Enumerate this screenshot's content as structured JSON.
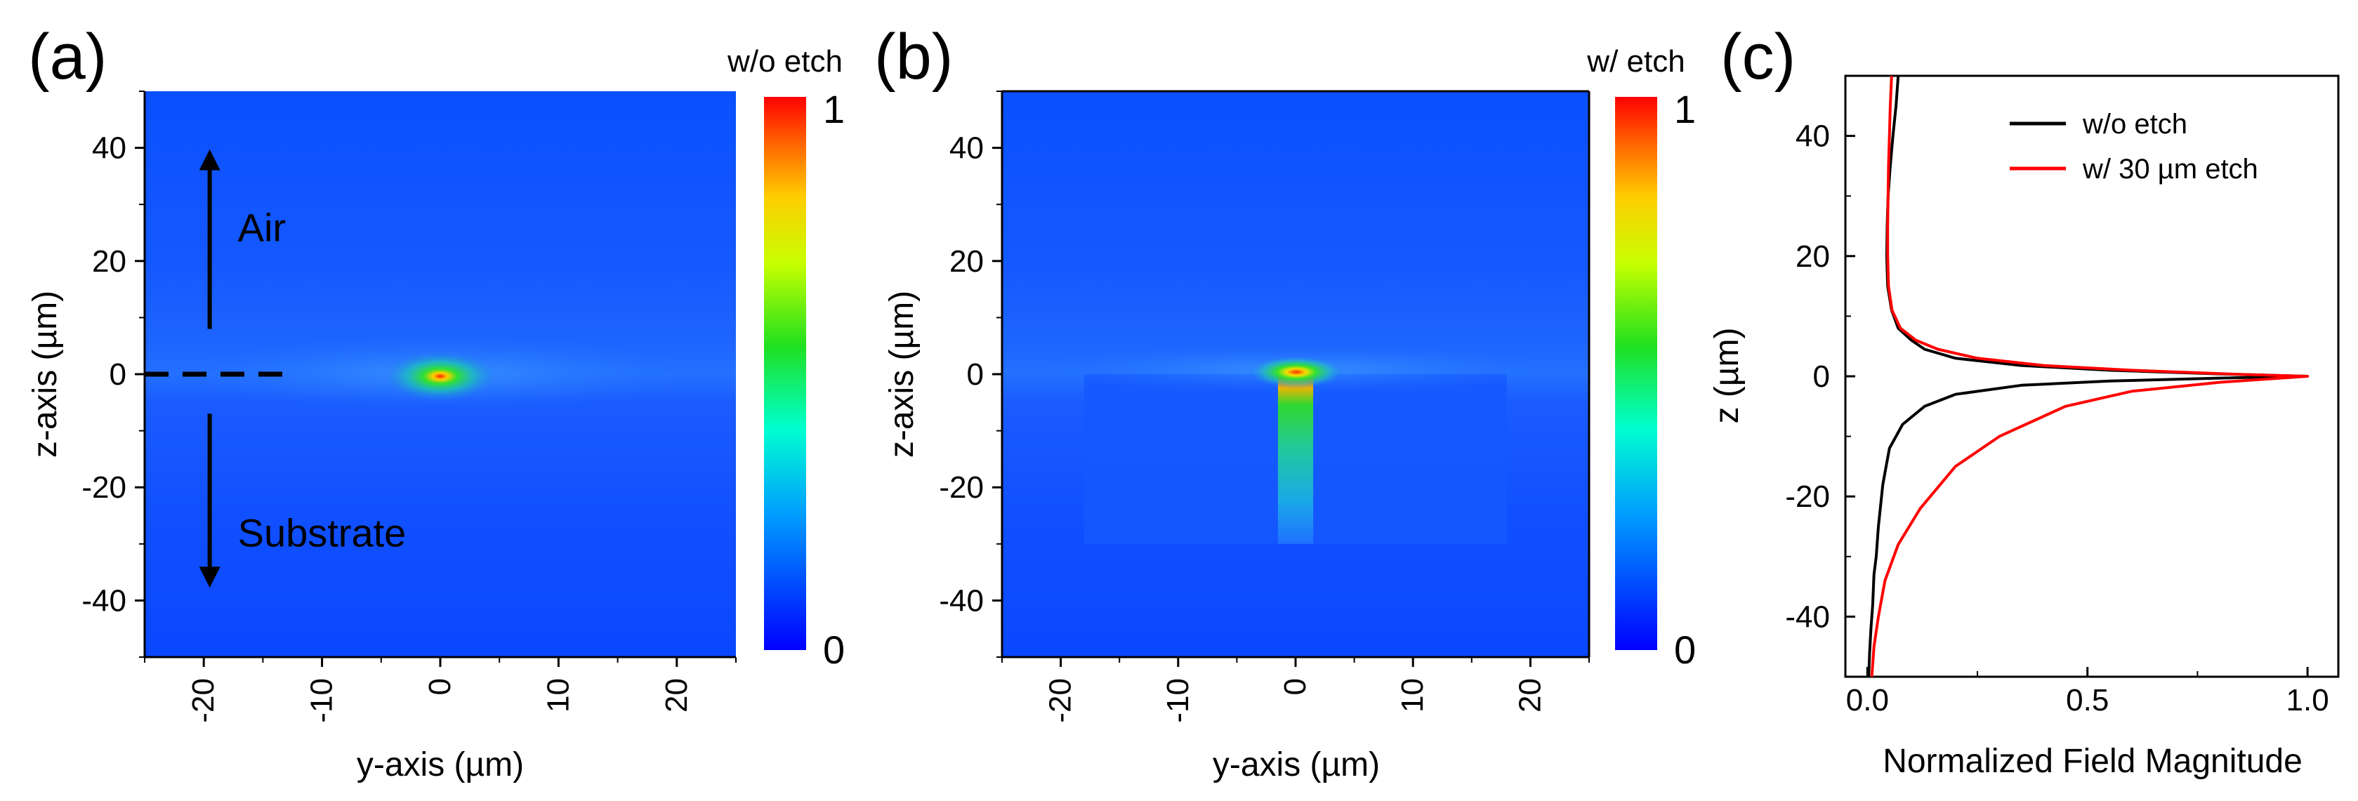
{
  "chart_data": [
    {
      "type": "heatmap",
      "panel": "(a)",
      "title": "",
      "xlabel": "y-axis (µm)",
      "ylabel": "z-axis (µm)",
      "xlim": [
        -25,
        25
      ],
      "ylim": [
        -50,
        50
      ],
      "xticks": [
        -20,
        -10,
        0,
        10,
        20
      ],
      "yticks": [
        40,
        20,
        0,
        -20,
        -40
      ],
      "colorbar": {
        "title": "w/o etch",
        "min": 0,
        "max": 1,
        "min_label": "0",
        "max_label": "1"
      },
      "annotations": [
        {
          "text": "Air",
          "x": -19.5,
          "y": 26,
          "arrow_from_y": 8,
          "arrow_to_y": 39
        },
        {
          "text": "Substrate",
          "x": -19.5,
          "y": -28,
          "arrow_from_y": -7,
          "arrow_to_y": -37
        }
      ],
      "dashed_line": {
        "x0": -25,
        "x1": -13,
        "y": 0
      },
      "field_peak": {
        "y": 0,
        "z": 0,
        "value": 1.0
      }
    },
    {
      "type": "heatmap",
      "panel": "(b)",
      "title": "",
      "xlabel": "y-axis (µm)",
      "ylabel": "z-axis (µm)",
      "xlim": [
        -25,
        25
      ],
      "ylim": [
        -50,
        50
      ],
      "xticks": [
        -20,
        -10,
        0,
        10,
        20
      ],
      "yticks": [
        40,
        20,
        0,
        -20,
        -40
      ],
      "colorbar": {
        "title": "w/ etch",
        "min": 0,
        "max": 1,
        "min_label": "0",
        "max_label": "1"
      },
      "etch_region": {
        "y_min": -18,
        "y_max": 18,
        "z_min": -30,
        "z_max": 0
      },
      "waveguide_channel": {
        "y_min": -1.5,
        "y_max": 1.5,
        "z_min": -30,
        "z_max": 0
      },
      "field_peak": {
        "y": 0,
        "z": 0,
        "value": 1.0
      }
    },
    {
      "type": "line",
      "panel": "(c)",
      "title": "",
      "xlabel": "Normalized Field Magnitude",
      "ylabel": "z (µm)",
      "xlim": [
        -0.05,
        1.07
      ],
      "ylim": [
        -50,
        50
      ],
      "xticks": [
        0.0,
        0.5,
        1.0
      ],
      "xtick_labels": [
        "0.0",
        "0.5",
        "1.0"
      ],
      "yticks": [
        40,
        20,
        0,
        -20,
        -40
      ],
      "legend_position": "top-right",
      "series": [
        {
          "name": "w/o etch",
          "color": "#000000",
          "points": [
            [
              0.07,
              50
            ],
            [
              0.065,
              45
            ],
            [
              0.058,
              40
            ],
            [
              0.052,
              35
            ],
            [
              0.047,
              30
            ],
            [
              0.045,
              25
            ],
            [
              0.044,
              20
            ],
            [
              0.046,
              15
            ],
            [
              0.055,
              11
            ],
            [
              0.07,
              8
            ],
            [
              0.1,
              6
            ],
            [
              0.13,
              4.5
            ],
            [
              0.2,
              3
            ],
            [
              0.35,
              1.8
            ],
            [
              0.55,
              1
            ],
            [
              0.8,
              0.4
            ],
            [
              1.0,
              0
            ],
            [
              0.8,
              -0.3
            ],
            [
              0.55,
              -0.8
            ],
            [
              0.35,
              -1.5
            ],
            [
              0.2,
              -3
            ],
            [
              0.13,
              -5
            ],
            [
              0.08,
              -8
            ],
            [
              0.05,
              -12
            ],
            [
              0.035,
              -18
            ],
            [
              0.025,
              -25
            ],
            [
              0.02,
              -30
            ],
            [
              0.015,
              -33
            ],
            [
              0.012,
              -38
            ],
            [
              0.008,
              -42
            ],
            [
              0.005,
              -46
            ],
            [
              0.003,
              -50
            ]
          ]
        },
        {
          "name": "w/ 30 µm etch",
          "color": "#ff0000",
          "points": [
            [
              0.055,
              50
            ],
            [
              0.052,
              45
            ],
            [
              0.05,
              40
            ],
            [
              0.048,
              35
            ],
            [
              0.047,
              30
            ],
            [
              0.046,
              25
            ],
            [
              0.046,
              20
            ],
            [
              0.048,
              15
            ],
            [
              0.056,
              11
            ],
            [
              0.075,
              8
            ],
            [
              0.11,
              6
            ],
            [
              0.16,
              4.5
            ],
            [
              0.25,
              3
            ],
            [
              0.4,
              1.8
            ],
            [
              0.6,
              1
            ],
            [
              0.85,
              0.3
            ],
            [
              1.0,
              0
            ],
            [
              0.8,
              -1
            ],
            [
              0.6,
              -2.5
            ],
            [
              0.45,
              -5
            ],
            [
              0.3,
              -10
            ],
            [
              0.2,
              -15
            ],
            [
              0.12,
              -22
            ],
            [
              0.07,
              -28
            ],
            [
              0.04,
              -34
            ],
            [
              0.025,
              -40
            ],
            [
              0.015,
              -45
            ],
            [
              0.01,
              -50
            ]
          ]
        }
      ]
    }
  ]
}
